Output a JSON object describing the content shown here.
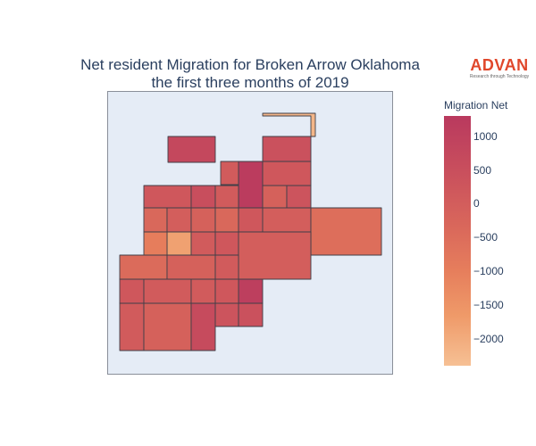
{
  "title": {
    "line1": "Net resident Migration for Broken Arrow Oklahoma",
    "line2": "the first three months of 2019"
  },
  "brand": {
    "name": "ADVAN",
    "tagline": "Research through Technology",
    "color": "#e0472b"
  },
  "colorbar": {
    "title": "Migration Net",
    "range": [
      -2400,
      1300
    ],
    "ticks": [
      {
        "value": 1000,
        "label": "1000"
      },
      {
        "value": 500,
        "label": "500"
      },
      {
        "value": 0,
        "label": "0"
      },
      {
        "value": -500,
        "label": "−500"
      },
      {
        "value": -1000,
        "label": "−1000"
      },
      {
        "value": -1500,
        "label": "−1500"
      },
      {
        "value": -2000,
        "label": "−2000"
      }
    ],
    "colors": [
      "#b9395e",
      "#c94f5d",
      "#d9675b",
      "#e67e5c",
      "#ef9a69",
      "#f6c094"
    ]
  },
  "map": {
    "background": "#e5ecf6",
    "region_values": [
      -2200,
      800,
      500,
      1200,
      300,
      200,
      300,
      600,
      200,
      0,
      400,
      -200,
      100,
      0,
      -200,
      -1800,
      300,
      100,
      -400,
      -300,
      -900,
      200,
      300,
      100,
      0,
      200,
      300,
      1100,
      200,
      200,
      300,
      200,
      0,
      700,
      400,
      500
    ]
  }
}
